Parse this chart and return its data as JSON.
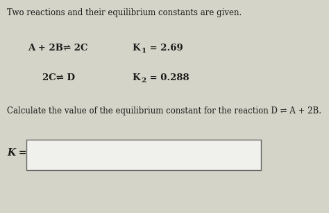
{
  "bg_color": "#d4d4c8",
  "text_color": "#1a1a1a",
  "title_text": "Two reactions and their equilibrium constants are given.",
  "reaction1": "A + 2B⇌ 2C",
  "reaction2": "2C⇌ D",
  "k1_label": "K",
  "k1_sub": "1",
  "k1_val": " = 2.69",
  "k2_label": "K",
  "k2_sub": "2",
  "k2_val": " = 0.288",
  "question_text": "Calculate the value of the equilibrium constant for the reaction D ⇌ A + 2B.",
  "k_label": "K =",
  "box_color": "#f0f0ec",
  "box_edge_color": "#666666",
  "title_fontsize": 8.5,
  "reaction_fontsize": 9.5,
  "question_fontsize": 8.5,
  "klabel_fontsize": 10.0
}
